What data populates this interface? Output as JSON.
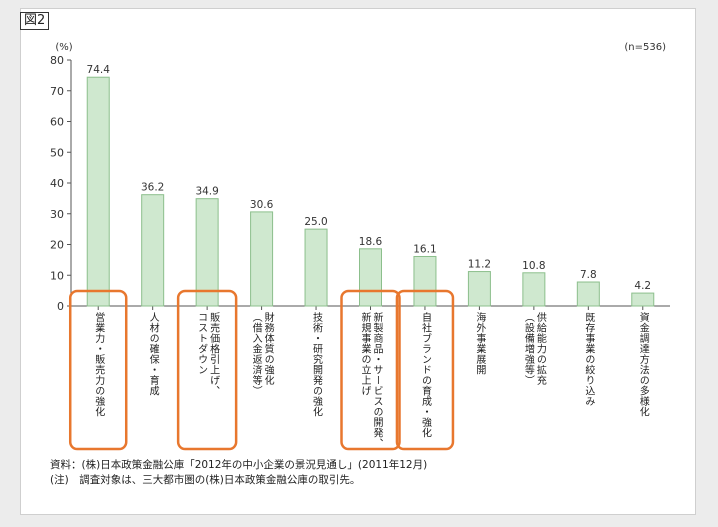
{
  "figure_label": "図2",
  "y_unit": "(%)",
  "sample_note": "(n=536)",
  "notes": [
    "資料：(株)日本政策金融公庫「2012年の中小企業の景況見通し」(2011年12月)",
    "(注)　調査対象は、三大都市圏の(株)日本政策金融公庫の取引先。"
  ],
  "colors": {
    "bar_fill": "#cfe8cf",
    "bar_stroke": "#8cbf8c",
    "highlight": "#e8772e",
    "axis": "#555555"
  },
  "chart_data": {
    "type": "bar",
    "title": "",
    "xlabel": "",
    "ylabel": "(%)",
    "ylim": [
      0,
      80
    ],
    "yticks": [
      0,
      10,
      20,
      30,
      40,
      50,
      60,
      70,
      80
    ],
    "grid": false,
    "categories": [
      "営業力・販売力の強化",
      "人材の確保・育成",
      "販売価格引上げ、コストダウン",
      "財務体質の強化（借入金返済等）",
      "技術・研究開発の強化",
      "新製商品・サービスの開発、新規事業の立上げ",
      "自社ブランドの育成・強化",
      "海外事業展開",
      "供給能力の拡充（設備増強等）",
      "既存事業の絞り込み",
      "資金調達方法の多様化"
    ],
    "category_lines": [
      [
        "営業力・販売力の強化"
      ],
      [
        "人材の確保・育成"
      ],
      [
        "販売価格引上げ、",
        "コストダウン"
      ],
      [
        "財務体質の強化",
        "（借入金返済等）"
      ],
      [
        "技術・研究開発の強化"
      ],
      [
        "新製商品・サービスの開発、",
        "新規事業の立上げ"
      ],
      [
        "自社ブランドの育成・強化"
      ],
      [
        "海外事業展開"
      ],
      [
        "供給能力の拡充",
        "（設備増強等）"
      ],
      [
        "既存事業の絞り込み"
      ],
      [
        "資金調達方法の多様化"
      ]
    ],
    "values": [
      74.4,
      36.2,
      34.9,
      30.6,
      25.0,
      18.6,
      16.1,
      11.2,
      10.8,
      7.8,
      4.2
    ],
    "value_labels": [
      "74.4",
      "36.2",
      "34.9",
      "30.6",
      "25.0",
      "18.6",
      "16.1",
      "11.2",
      "10.8",
      "7.8",
      "4.2"
    ],
    "highlighted": [
      0,
      2,
      5,
      6
    ]
  }
}
